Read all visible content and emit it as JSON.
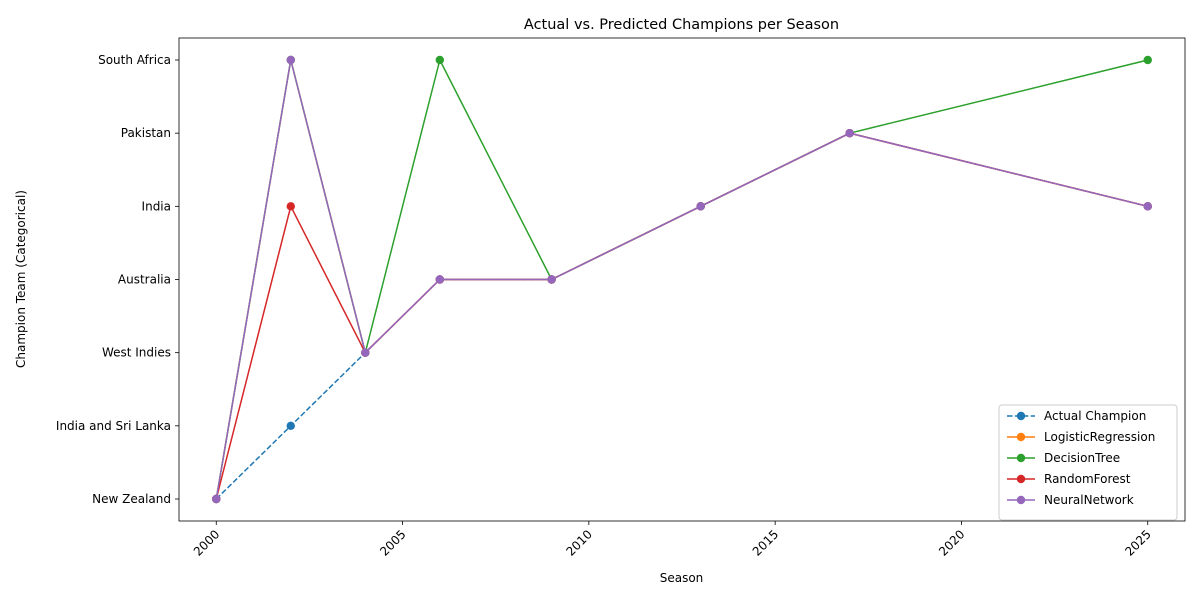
{
  "chart_data": {
    "type": "line",
    "title": "Actual vs. Predicted Champions per Season",
    "xlabel": "Season",
    "ylabel": "Champion Team (Categorical)",
    "x_ticks": [
      2000,
      2005,
      2010,
      2015,
      2020,
      2025
    ],
    "xlim": [
      1999.0,
      2026.0
    ],
    "y_categories": [
      "New Zealand",
      "India and Sri Lanka",
      "West Indies",
      "Australia",
      "India",
      "Pakistan",
      "South Africa"
    ],
    "x": [
      2000,
      2002,
      2004,
      2006,
      2009,
      2013,
      2017,
      2025
    ],
    "grid": false,
    "legend_position": "lower right",
    "series": [
      {
        "name": "Actual Champion",
        "color": "#1f77b4",
        "dashed": true,
        "values": [
          "New Zealand",
          "India and Sri Lanka",
          "West Indies",
          "Australia",
          "Australia",
          "India",
          "Pakistan",
          "India"
        ]
      },
      {
        "name": "LogisticRegression",
        "color": "#ff7f0e",
        "dashed": false,
        "values": [
          "New Zealand",
          "South Africa",
          "West Indies",
          "Australia",
          "Australia",
          "India",
          "Pakistan",
          "India"
        ]
      },
      {
        "name": "DecisionTree",
        "color": "#2ca02c",
        "dashed": false,
        "values": [
          "New Zealand",
          "South Africa",
          "West Indies",
          "South Africa",
          "Australia",
          "India",
          "Pakistan",
          "South Africa"
        ]
      },
      {
        "name": "RandomForest",
        "color": "#d62728",
        "dashed": false,
        "values": [
          "New Zealand",
          "India",
          "West Indies",
          "Australia",
          "Australia",
          "India",
          "Pakistan",
          "India"
        ]
      },
      {
        "name": "NeuralNetwork",
        "color": "#9467bd",
        "dashed": false,
        "values": [
          "New Zealand",
          "South Africa",
          "West Indies",
          "Australia",
          "Australia",
          "India",
          "Pakistan",
          "India"
        ]
      }
    ]
  }
}
